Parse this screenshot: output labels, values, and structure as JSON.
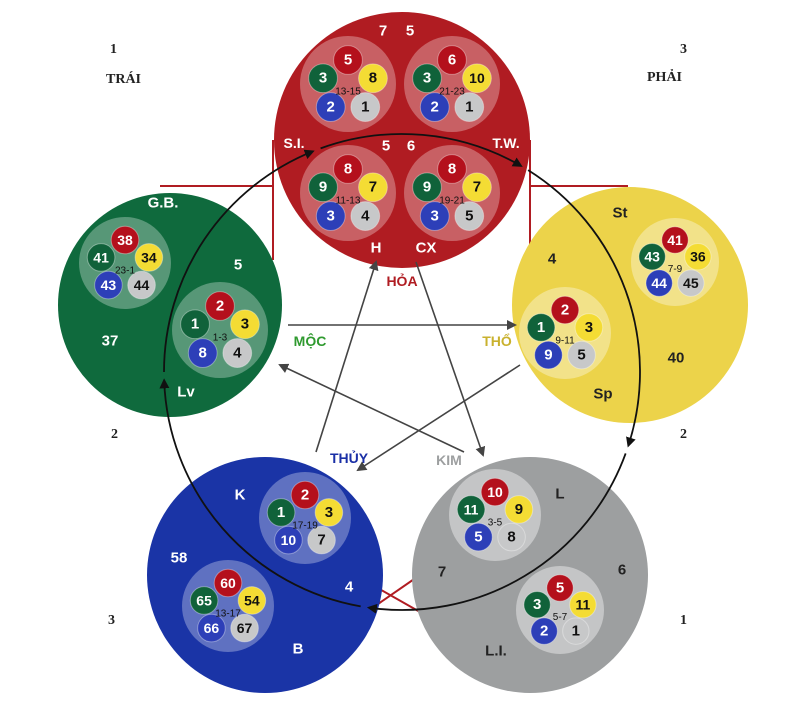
{
  "corners": {
    "top_left_number": "1",
    "top_left_label": "TRÁI",
    "top_right_number": "3",
    "top_right_label": "PHẢI",
    "left_mid_number": "2",
    "right_mid_number": "2",
    "bottom_left_number": "3",
    "bottom_right_number": "1"
  },
  "colors": {
    "fire": "#b01c22",
    "wood": "#0f6a3d",
    "earth": "#ecd34a",
    "metal": "#9d9fa0",
    "water": "#1a34a6",
    "yellow_ball": "#f4dc34",
    "white_ball": "#c7c8c9",
    "red_ball": "#b4101c",
    "green_ball": "#10623a",
    "blue_ball": "#2d3fb8"
  },
  "elements": {
    "fire": {
      "name": "HỎA",
      "labels": [
        "7",
        "5",
        "S.I.",
        "T.W.",
        "5",
        "6",
        "H",
        "CX"
      ],
      "groups": [
        {
          "balls": [
            "5",
            "3",
            "8",
            "2",
            "1"
          ],
          "range": "13-15"
        },
        {
          "balls": [
            "6",
            "3",
            "10",
            "2",
            "1"
          ],
          "range": "21-23"
        },
        {
          "balls": [
            "8",
            "9",
            "7",
            "3",
            "4"
          ],
          "range": "11-13"
        },
        {
          "balls": [
            "8",
            "9",
            "7",
            "3",
            "5"
          ],
          "range": "19-21"
        }
      ]
    },
    "wood": {
      "name": "MỘC",
      "labels": [
        "G.B.",
        "5",
        "37",
        "Lv"
      ],
      "groups": [
        {
          "balls": [
            "38",
            "41",
            "34",
            "43",
            "44"
          ],
          "range": "23-1"
        },
        {
          "balls": [
            "2",
            "1",
            "3",
            "8",
            "4"
          ],
          "range": "1-3"
        }
      ]
    },
    "earth": {
      "name": "THỔ",
      "labels": [
        "St",
        "4",
        "40",
        "Sp"
      ],
      "groups": [
        {
          "balls": [
            "41",
            "43",
            "36",
            "44",
            "45"
          ],
          "range": "7-9"
        },
        {
          "balls": [
            "2",
            "1",
            "3",
            "9",
            "5"
          ],
          "range": "9-11"
        }
      ]
    },
    "water": {
      "name": "THỦY",
      "labels": [
        "K",
        "58",
        "4",
        "B"
      ],
      "groups": [
        {
          "balls": [
            "2",
            "1",
            "3",
            "10",
            "7"
          ],
          "range": "17-19"
        },
        {
          "balls": [
            "60",
            "65",
            "54",
            "66",
            "67"
          ],
          "range": "13-17"
        }
      ]
    },
    "metal": {
      "name": "KIM",
      "labels": [
        "L",
        "7",
        "6",
        "L.I."
      ],
      "groups": [
        {
          "balls": [
            "10",
            "11",
            "9",
            "5",
            "8"
          ],
          "range": "3-5"
        },
        {
          "balls": [
            "5",
            "3",
            "11",
            "2",
            "1"
          ],
          "range": "5-7"
        }
      ]
    }
  }
}
